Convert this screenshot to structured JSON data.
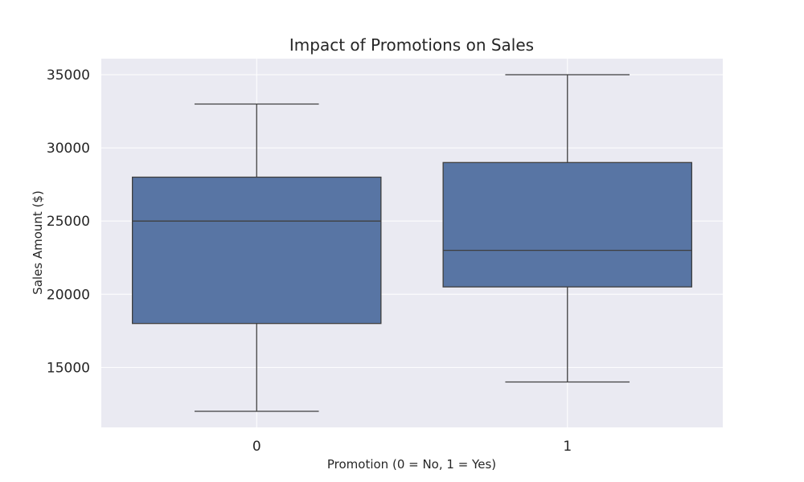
{
  "chart_data": {
    "type": "box",
    "title": "Impact of Promotions on Sales",
    "xlabel": "Promotion (0 = No, 1 = Yes)",
    "ylabel": "Sales Amount ($)",
    "categories": [
      "0",
      "1"
    ],
    "boxes": [
      {
        "category": "0",
        "whisker_low": 12000,
        "q1": 18000,
        "median": 25000,
        "q3": 28000,
        "whisker_high": 33000
      },
      {
        "category": "1",
        "whisker_low": 14000,
        "q1": 20500,
        "median": 23000,
        "q3": 29000,
        "whisker_high": 35000
      }
    ],
    "ylim": [
      10900,
      36100
    ],
    "yticks": [
      15000,
      20000,
      25000,
      30000,
      35000
    ],
    "ytick_labels": [
      "15000",
      "20000",
      "25000",
      "30000",
      "35000"
    ],
    "grid": true,
    "colors": {
      "box_fill": "#5875a4",
      "box_edge": "#3f3f3f",
      "plot_background": "#eaeaf2",
      "grid": "#ffffff",
      "text": "#262626"
    }
  }
}
